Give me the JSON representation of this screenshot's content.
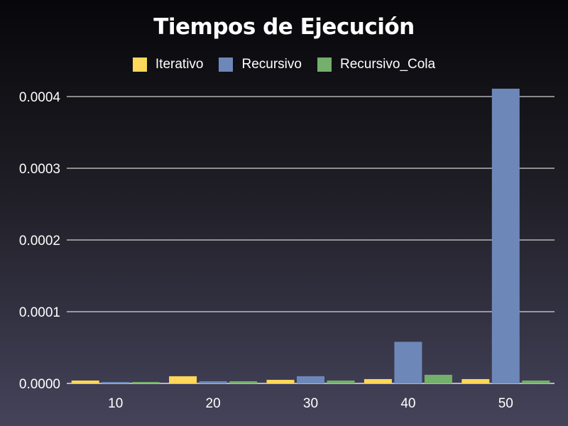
{
  "chart_data": {
    "type": "bar",
    "title": "Tiempos de Ejecución",
    "categories": [
      "10",
      "20",
      "30",
      "40",
      "50"
    ],
    "series": [
      {
        "name": "Iterativo",
        "color": "#ffd75a",
        "values": [
          4e-06,
          1e-05,
          5e-06,
          6e-06,
          6e-06
        ]
      },
      {
        "name": "Recursivo",
        "color": "#6d88b8",
        "values": [
          2e-06,
          3e-06,
          1e-05,
          5.8e-05,
          0.000411
        ]
      },
      {
        "name": "Recursivo_Cola",
        "color": "#74af6b",
        "values": [
          2e-06,
          3e-06,
          4e-06,
          1.2e-05,
          4e-06
        ]
      }
    ],
    "yticks": [
      "0.0000",
      "0.0001",
      "0.0002",
      "0.0003",
      "0.0004"
    ],
    "ytick_values": [
      0,
      0.0001,
      0.0002,
      0.0003,
      0.0004
    ],
    "ylim": [
      0,
      0.0004
    ],
    "grid": true,
    "legend_position": "top-center"
  }
}
